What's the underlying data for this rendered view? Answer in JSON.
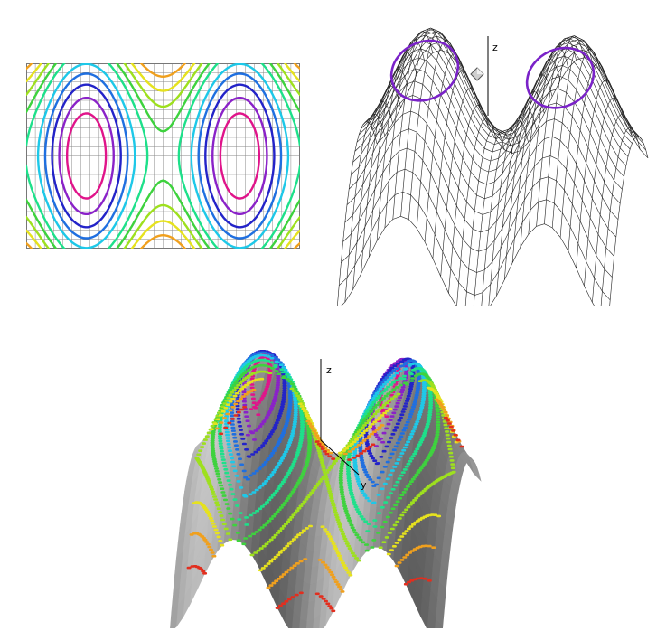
{
  "contour_plot": {
    "level_colors": [
      "#e0148a",
      "#8a22c8",
      "#2323c8",
      "#1f6fe0",
      "#1ec8e8",
      "#1ee08a",
      "#3ed23e",
      "#9ee01e",
      "#e6e21e",
      "#f0a01e",
      "#e22e1e"
    ],
    "grid_color": "#888888"
  },
  "wireframe_plot": {
    "axis_labels": {
      "z": "z"
    },
    "line_color": "#222222",
    "highlight_contour_color": "#7a22c8"
  },
  "surface_plot": {
    "axis_labels": {
      "z": "z",
      "y": "y"
    },
    "surface_color": "#b8b8b8",
    "level_colors": [
      "#e0148a",
      "#8a22c8",
      "#2323c8",
      "#1f6fe0",
      "#1ec8e8",
      "#1ee08a",
      "#3ed23e",
      "#9ee01e",
      "#e6e21e",
      "#f0a01e",
      "#e22e1e"
    ]
  }
}
